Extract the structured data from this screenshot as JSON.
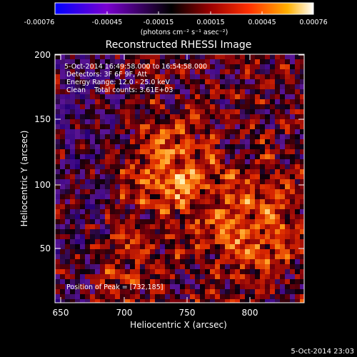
{
  "colorbar": {
    "tick_labels": [
      "-0.00076",
      "-0.00045",
      "-0.00015",
      "0.00015",
      "0.00045",
      "0.00076"
    ],
    "units_label": "(photons cm⁻² s⁻¹ asec⁻²)",
    "colors": [
      "#0000ff",
      "#8800cc",
      "#000000",
      "#8b0000",
      "#ff3300",
      "#ffaa00",
      "#ffffff"
    ]
  },
  "plot": {
    "title": "Reconstructed RHESSI Image",
    "xlabel": "Heliocentric X (arcsec)",
    "ylabel": "Heliocentric Y (arcsec)",
    "x_ticks": [
      "650",
      "700",
      "750",
      "800"
    ],
    "y_ticks": [
      "50",
      "100",
      "150",
      "200"
    ]
  },
  "overlay": {
    "line1": "5-Oct-2014 16:49:58.000 to 16:54:58.000",
    "line2": "Detectors: 3F 6F 9F, Att",
    "line3": "Energy Range: 12.0 - 25.0 keV",
    "line4": "Clean    Total counts: 3.61E+03",
    "peak": "Position of Peak = [732,185]"
  },
  "footer": {
    "timestamp": "5-Oct-2014 23:03"
  }
}
